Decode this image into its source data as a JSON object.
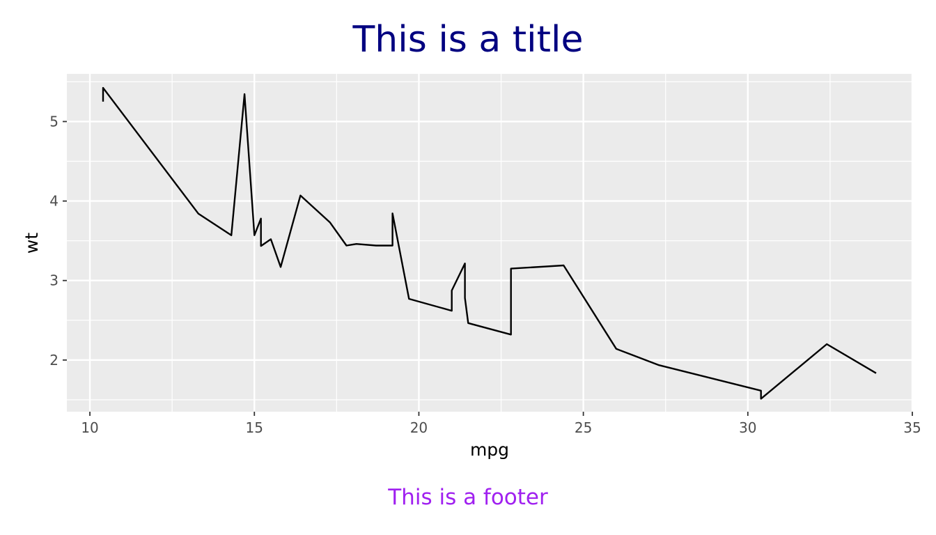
{
  "page": {
    "title": "This is a title",
    "footer": "This is a footer",
    "title_color": "#000080",
    "footer_color": "#a020f0"
  },
  "chart_data": {
    "type": "line",
    "title": "This is a title",
    "caption": "This is a footer",
    "xlabel": "mpg",
    "ylabel": "wt",
    "xlim": [
      9.3,
      35.0
    ],
    "ylim": [
      1.35,
      5.6
    ],
    "xticks": [
      10,
      15,
      20,
      25,
      30,
      35
    ],
    "xtick_labels": [
      "10",
      "15",
      "20",
      "25",
      "30",
      "35"
    ],
    "yticks": [
      2,
      3,
      4,
      5
    ],
    "ytick_labels": [
      "2",
      "3",
      "4",
      "5"
    ],
    "grid": true,
    "panel_color": "#ebebeb",
    "line_color": "#000000",
    "series": [
      {
        "x": [
          10.4,
          10.4,
          13.3,
          14.3,
          14.7,
          15.0,
          15.2,
          15.2,
          15.5,
          15.8,
          16.4,
          17.3,
          17.8,
          18.1,
          18.7,
          19.2,
          19.2,
          19.7,
          21.0,
          21.0,
          21.4,
          21.4,
          21.5,
          22.8,
          22.8,
          24.4,
          26.0,
          27.3,
          30.4,
          30.4,
          32.4,
          33.9
        ],
        "y": [
          5.25,
          5.424,
          3.84,
          3.57,
          5.345,
          3.57,
          3.78,
          3.435,
          3.52,
          3.17,
          4.07,
          3.73,
          3.44,
          3.46,
          3.44,
          3.44,
          3.845,
          2.77,
          2.62,
          2.875,
          3.215,
          2.78,
          2.465,
          2.32,
          3.15,
          3.19,
          2.14,
          1.935,
          1.615,
          1.513,
          2.2,
          1.835
        ]
      }
    ]
  }
}
